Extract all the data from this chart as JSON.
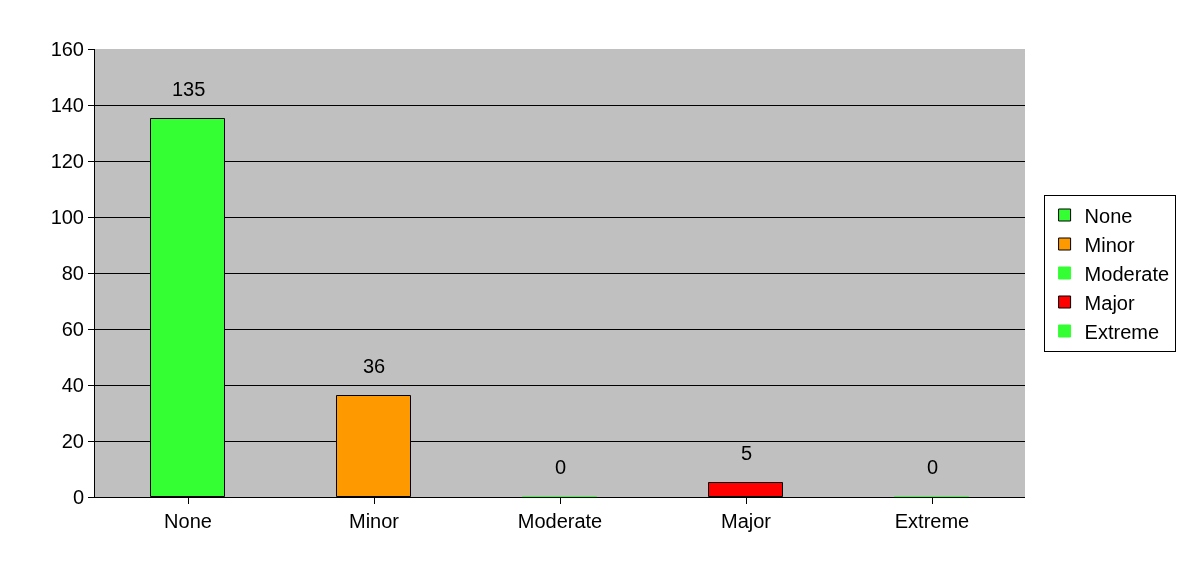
{
  "chart_data": {
    "type": "bar",
    "categories": [
      "None",
      "Minor",
      "Moderate",
      "Major",
      "Extreme"
    ],
    "series": [
      {
        "name": "None",
        "color": "#33ff33",
        "values": [
          135,
          null,
          null,
          null,
          null
        ]
      },
      {
        "name": "Minor",
        "color": "#ff9900",
        "values": [
          null,
          36,
          null,
          null,
          null
        ]
      },
      {
        "name": "Moderate",
        "color": "#33ff33",
        "values": [
          null,
          null,
          0,
          null,
          null
        ]
      },
      {
        "name": "Major",
        "color": "#ff0000",
        "values": [
          null,
          null,
          null,
          5,
          null
        ]
      },
      {
        "name": "Extreme",
        "color": "#33ff33",
        "values": [
          null,
          null,
          null,
          null,
          0
        ]
      }
    ],
    "ylim": [
      0,
      160
    ],
    "yticks": [
      0,
      20,
      40,
      60,
      80,
      100,
      120,
      140,
      160
    ],
    "grid": "y",
    "legend": "right",
    "data_labels": true
  }
}
